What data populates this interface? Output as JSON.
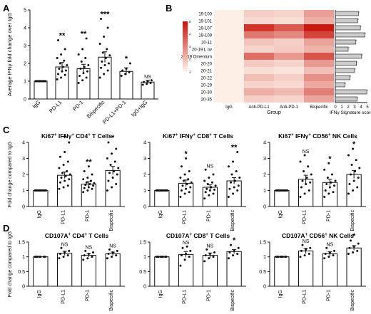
{
  "panel_labels": [
    "A",
    "B",
    "C",
    "D"
  ],
  "colors": {
    "bar": "#ffffff",
    "stroke": "#111111",
    "heat_low": "#fdeee6",
    "heat_high": "#c81a10",
    "hbar": "#cccccc"
  },
  "chart_data": [
    {
      "panel": "A",
      "type": "bar",
      "ylabel": "Average IFNγ fold change over IgG",
      "ylim": [
        0,
        5
      ],
      "yticks": [
        0,
        1,
        2,
        3,
        4,
        5
      ],
      "categories": [
        "IgG",
        "PD-L1",
        "PD-1",
        "Bispecific",
        "PD-L1+PD-1",
        "IgG+IgG"
      ],
      "values": [
        1.0,
        1.8,
        1.7,
        2.35,
        1.55,
        0.95
      ],
      "errors": [
        0.0,
        0.25,
        0.25,
        0.3,
        0.2,
        0.1
      ],
      "significance": [
        "",
        "**",
        "**",
        "***",
        "*",
        "NS"
      ],
      "points": [
        [
          1,
          1,
          1,
          1,
          1,
          1,
          1,
          1,
          1,
          1,
          1,
          1,
          1,
          1
        ],
        [
          1.1,
          1.2,
          1.35,
          1.4,
          1.55,
          1.6,
          1.7,
          1.8,
          1.9,
          2.0,
          2.15,
          2.3,
          2.5,
          2.8,
          3.3
        ],
        [
          0.9,
          1.05,
          1.2,
          1.3,
          1.45,
          1.55,
          1.7,
          1.8,
          1.9,
          2.1,
          2.3,
          2.5,
          2.8,
          3.4
        ],
        [
          1.2,
          1.4,
          1.6,
          1.75,
          1.9,
          2.0,
          2.1,
          2.3,
          2.45,
          2.6,
          2.8,
          3.1,
          3.5,
          4.0,
          4.5
        ],
        [
          1.3,
          1.4,
          1.5,
          1.6,
          1.7,
          2.0
        ],
        [
          0.8,
          0.85,
          0.9,
          0.95,
          1.0,
          1.05
        ]
      ]
    },
    {
      "panel": "B",
      "type": "heatmap",
      "xlabel": "Group",
      "columns": [
        "IgG",
        "Anti-PD-L1",
        "Anti-PD-1",
        "Bispecific"
      ],
      "rows": [
        "19-100",
        "19-101",
        "19-107",
        "19-109",
        "20-11",
        "20-19 L ov",
        "20-19 Omentum",
        "20-20",
        "20-21",
        "20-22",
        "20-29",
        "20-30",
        "20-35"
      ],
      "values": [
        [
          1,
          1.6,
          1.5,
          2.5
        ],
        [
          1,
          1.4,
          1.3,
          2.2
        ],
        [
          1,
          4.5,
          3.8,
          5.0
        ],
        [
          1,
          3.2,
          2.9,
          4.2
        ],
        [
          1,
          1.8,
          1.6,
          2.4
        ],
        [
          1,
          1.5,
          1.7,
          2.1
        ],
        [
          1,
          3.4,
          2.6,
          3.9
        ],
        [
          1,
          1.7,
          1.5,
          2.6
        ],
        [
          1,
          1.3,
          1.2,
          1.9
        ],
        [
          1,
          1.9,
          1.6,
          2.8
        ],
        [
          1,
          1.5,
          1.4,
          2.3
        ],
        [
          1,
          2.2,
          2.0,
          3.1
        ],
        [
          1,
          1.6,
          1.5,
          2.4
        ]
      ],
      "color_scale_ticks": [
        1,
        2,
        3,
        4,
        5
      ]
    },
    {
      "panel": "B",
      "type": "bar",
      "orientation": "horizontal",
      "xlabel": "IFNγ Signature score",
      "xlim": [
        0,
        5
      ],
      "xticks": [
        0,
        1,
        2,
        3,
        4,
        5
      ],
      "categories": [
        "19-100",
        "19-101",
        "19-107",
        "19-109",
        "20-11",
        "20-19 L ov",
        "20-19 Omentum",
        "20-20",
        "20-21",
        "20-22",
        "20-29",
        "20-30",
        "20-35"
      ],
      "values": [
        3.6,
        3.5,
        3.9,
        4.6,
        3.2,
        2.0,
        4.1,
        3.3,
        3.0,
        2.3,
        1.5,
        4.9,
        3.4
      ]
    },
    {
      "panel": "C",
      "type": "bar",
      "title_base": "Ki67",
      "title_rest": " IFNγ",
      "title_end": " CD4",
      "title_tail": " T Cells",
      "ylabel": "Fold change compared to IgG",
      "ylim": [
        0,
        4
      ],
      "yticks": [
        0,
        1,
        2,
        3,
        4
      ],
      "categories": [
        "IgG",
        "PD-L1",
        "PD-1",
        "Bispecific"
      ],
      "values": [
        1.0,
        1.95,
        1.4,
        2.25
      ],
      "errors": [
        0.0,
        0.2,
        0.15,
        0.25
      ],
      "significance": [
        "",
        "*",
        "**",
        "*"
      ],
      "points": [
        [
          1,
          1,
          1,
          1,
          1,
          1,
          1,
          1,
          1,
          1,
          1,
          1,
          1,
          1,
          1,
          1
        ],
        [
          1.1,
          1.2,
          1.3,
          1.5,
          1.6,
          1.7,
          1.8,
          1.9,
          2.0,
          2.1,
          2.2,
          2.4,
          2.6,
          2.8,
          3.1,
          3.4,
          4.0
        ],
        [
          0.9,
          1.0,
          1.1,
          1.15,
          1.2,
          1.3,
          1.35,
          1.4,
          1.45,
          1.5,
          1.6,
          1.7,
          1.8,
          2.0,
          2.2,
          2.5
        ],
        [
          1.0,
          1.2,
          1.4,
          1.6,
          1.8,
          2.0,
          2.1,
          2.2,
          2.4,
          2.6,
          2.8,
          3.0,
          3.3,
          3.6,
          4.0
        ]
      ]
    },
    {
      "panel": "C",
      "type": "bar",
      "title_base": "Ki67",
      "title_rest": " IFNγ",
      "title_end": " CD8",
      "title_tail": " T Cells",
      "ylim": [
        0,
        4
      ],
      "yticks": [
        0,
        1,
        2,
        3,
        4
      ],
      "categories": [
        "IgG",
        "PD-L1",
        "PD-1",
        "Bispecific"
      ],
      "values": [
        1.0,
        1.45,
        1.2,
        1.6
      ],
      "errors": [
        0.0,
        0.2,
        0.15,
        0.2
      ],
      "significance": [
        "",
        "*",
        "NS",
        "**"
      ],
      "points": [
        [
          1,
          1,
          1,
          1,
          1,
          1,
          1,
          1,
          1,
          1,
          1,
          1,
          1,
          1,
          1,
          1
        ],
        [
          0.6,
          0.8,
          0.9,
          1.0,
          1.1,
          1.2,
          1.3,
          1.4,
          1.5,
          1.6,
          1.7,
          1.8,
          2.0,
          2.2,
          2.5,
          3.0
        ],
        [
          0.5,
          0.7,
          0.8,
          0.9,
          1.0,
          1.05,
          1.1,
          1.2,
          1.3,
          1.4,
          1.5,
          1.6,
          1.8,
          2.0,
          2.3
        ],
        [
          0.6,
          0.8,
          1.0,
          1.1,
          1.2,
          1.3,
          1.5,
          1.6,
          1.8,
          2.0,
          2.2,
          2.5,
          2.8,
          3.4
        ]
      ]
    },
    {
      "panel": "C",
      "type": "bar",
      "title_base": "Ki67",
      "title_rest": " IFNγ",
      "title_end": " CD56",
      "title_tail": " NK Cells",
      "ylim": [
        0,
        4
      ],
      "yticks": [
        0,
        1,
        2,
        3,
        4
      ],
      "categories": [
        "IgG",
        "PD-L1",
        "PD-1",
        "Bispecific"
      ],
      "values": [
        1.0,
        1.7,
        1.5,
        2.0
      ],
      "errors": [
        0.0,
        0.25,
        0.2,
        0.25
      ],
      "significance": [
        "",
        "NS",
        "*",
        "*"
      ],
      "points": [
        [
          1,
          1,
          1,
          1,
          1,
          1,
          1,
          1,
          1,
          1,
          1,
          1,
          1,
          1,
          1
        ],
        [
          0.6,
          0.8,
          1.0,
          1.2,
          1.4,
          1.5,
          1.6,
          1.8,
          2.0,
          2.2,
          2.5,
          2.8,
          3.2
        ],
        [
          0.6,
          0.8,
          0.9,
          1.0,
          1.2,
          1.3,
          1.4,
          1.5,
          1.6,
          1.8,
          2.0,
          2.3,
          2.7
        ],
        [
          0.8,
          1.0,
          1.2,
          1.4,
          1.6,
          1.8,
          2.0,
          2.2,
          2.4,
          2.6,
          2.9,
          3.2,
          3.6
        ]
      ]
    },
    {
      "panel": "D",
      "type": "bar",
      "title_base": "CD107A",
      "title_end": " CD4",
      "title_tail": " T Cells",
      "ylabel": "Fold change compared to IgG",
      "ylim": [
        0,
        1.5
      ],
      "yticks": [
        0,
        0.5,
        1.0,
        1.5
      ],
      "categories": [
        "IgG",
        "PD-L1",
        "PD-1",
        "Bispecific"
      ],
      "values": [
        1.0,
        1.12,
        1.05,
        1.1
      ],
      "errors": [
        0.0,
        0.07,
        0.06,
        0.06
      ],
      "significance": [
        "",
        "NS",
        "NS",
        "NS"
      ],
      "points": [
        [
          1,
          1,
          1,
          1,
          1,
          1,
          1
        ],
        [
          0.95,
          1.0,
          1.05,
          1.1,
          1.15,
          1.2,
          1.3
        ],
        [
          0.9,
          0.95,
          1.0,
          1.05,
          1.1,
          1.15,
          1.2
        ],
        [
          0.95,
          1.0,
          1.05,
          1.1,
          1.15,
          1.2,
          1.25
        ]
      ]
    },
    {
      "panel": "D",
      "type": "bar",
      "title_base": "CD107A",
      "title_end": " CD8",
      "title_tail": " T Cells",
      "ylim": [
        0,
        1.5
      ],
      "yticks": [
        0,
        0.5,
        1.0,
        1.5
      ],
      "categories": [
        "IgG",
        "PD-L1",
        "PD-1",
        "Bispecific"
      ],
      "values": [
        1.0,
        1.08,
        1.05,
        1.18
      ],
      "errors": [
        0.0,
        0.1,
        0.08,
        0.07
      ],
      "significance": [
        "",
        "NS",
        "NS",
        "*"
      ],
      "points": [
        [
          1,
          1,
          1,
          1,
          1,
          1,
          1,
          1
        ],
        [
          0.7,
          0.9,
          1.0,
          1.05,
          1.1,
          1.2,
          1.3,
          1.35
        ],
        [
          0.85,
          0.95,
          1.0,
          1.05,
          1.1,
          1.15,
          1.25
        ],
        [
          0.95,
          1.05,
          1.1,
          1.15,
          1.2,
          1.3,
          1.4
        ]
      ]
    },
    {
      "panel": "D",
      "type": "bar",
      "title_base": "CD107A",
      "title_end": " CD56",
      "title_tail": " NK Cells",
      "ylim": [
        0,
        1.5
      ],
      "yticks": [
        0,
        0.5,
        1.0,
        1.5
      ],
      "categories": [
        "IgG",
        "PD-L1",
        "PD-1",
        "Bispecific"
      ],
      "values": [
        1.0,
        1.2,
        1.1,
        1.3
      ],
      "errors": [
        0.0,
        0.09,
        0.07,
        0.08
      ],
      "significance": [
        "",
        "NS",
        "NS",
        "*"
      ],
      "points": [
        [
          1,
          1,
          1,
          1,
          1,
          1,
          1,
          1
        ],
        [
          1.0,
          1.05,
          1.1,
          1.2,
          1.25,
          1.3,
          1.4
        ],
        [
          0.95,
          1.0,
          1.05,
          1.1,
          1.15,
          1.2,
          1.3
        ],
        [
          1.1,
          1.15,
          1.2,
          1.3,
          1.35,
          1.45,
          1.55
        ]
      ]
    }
  ]
}
